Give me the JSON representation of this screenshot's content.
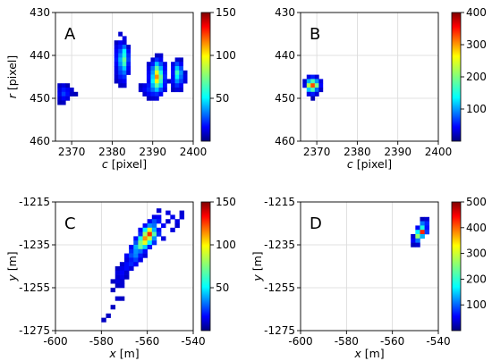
{
  "chart_data": [
    {
      "type": "heatmap",
      "panel_label": "A",
      "xlabel_var": "c",
      "xlabel_unit": "[pixel]",
      "ylabel_var": "r",
      "ylabel_unit": "[pixel]",
      "xlim": [
        2366,
        2400
      ],
      "ylim": [
        460,
        430
      ],
      "xticks": [
        2370,
        2380,
        2390,
        2400
      ],
      "yticks": [
        430,
        440,
        450,
        460
      ],
      "cell_size": 1,
      "colorbar": {
        "colormap": "jet",
        "min": 0,
        "max": 150,
        "ticks": [
          50,
          100,
          150
        ]
      },
      "cells": [
        [
          2367,
          447,
          10
        ],
        [
          2368,
          447,
          14
        ],
        [
          2369,
          447,
          8
        ],
        [
          2367,
          448,
          14
        ],
        [
          2368,
          448,
          22
        ],
        [
          2369,
          448,
          18
        ],
        [
          2370,
          448,
          12
        ],
        [
          2367,
          449,
          16
        ],
        [
          2368,
          449,
          28
        ],
        [
          2369,
          449,
          20
        ],
        [
          2370,
          449,
          10
        ],
        [
          2371,
          449,
          8
        ],
        [
          2367,
          450,
          12
        ],
        [
          2368,
          450,
          18
        ],
        [
          2369,
          450,
          14
        ],
        [
          2367,
          451,
          8
        ],
        [
          2368,
          451,
          10
        ],
        [
          2382,
          435,
          12
        ],
        [
          2383,
          436,
          15
        ],
        [
          2381,
          437,
          10
        ],
        [
          2382,
          437,
          18
        ],
        [
          2383,
          437,
          14
        ],
        [
          2381,
          438,
          15
        ],
        [
          2382,
          438,
          22
        ],
        [
          2383,
          438,
          35
        ],
        [
          2384,
          438,
          12
        ],
        [
          2381,
          439,
          18
        ],
        [
          2382,
          439,
          30
        ],
        [
          2383,
          439,
          55
        ],
        [
          2384,
          439,
          20
        ],
        [
          2381,
          440,
          20
        ],
        [
          2382,
          440,
          38
        ],
        [
          2383,
          440,
          60
        ],
        [
          2384,
          440,
          25
        ],
        [
          2381,
          441,
          22
        ],
        [
          2382,
          441,
          45
        ],
        [
          2383,
          441,
          72
        ],
        [
          2384,
          441,
          28
        ],
        [
          2381,
          442,
          18
        ],
        [
          2382,
          442,
          40
        ],
        [
          2383,
          442,
          65
        ],
        [
          2384,
          442,
          22
        ],
        [
          2381,
          443,
          15
        ],
        [
          2382,
          443,
          32
        ],
        [
          2383,
          443,
          48
        ],
        [
          2384,
          443,
          18
        ],
        [
          2381,
          444,
          14
        ],
        [
          2382,
          444,
          28
        ],
        [
          2383,
          444,
          36
        ],
        [
          2384,
          444,
          15
        ],
        [
          2381,
          445,
          12
        ],
        [
          2382,
          445,
          22
        ],
        [
          2383,
          445,
          26
        ],
        [
          2381,
          446,
          10
        ],
        [
          2382,
          446,
          15
        ],
        [
          2383,
          446,
          18
        ],
        [
          2382,
          447,
          10
        ],
        [
          2383,
          447,
          12
        ],
        [
          2391,
          440,
          10
        ],
        [
          2392,
          440,
          12
        ],
        [
          2390,
          441,
          12
        ],
        [
          2391,
          441,
          25
        ],
        [
          2392,
          441,
          18
        ],
        [
          2389,
          442,
          12
        ],
        [
          2390,
          442,
          22
        ],
        [
          2391,
          442,
          48
        ],
        [
          2392,
          442,
          30
        ],
        [
          2393,
          442,
          15
        ],
        [
          2389,
          443,
          15
        ],
        [
          2390,
          443,
          35
        ],
        [
          2391,
          443,
          70
        ],
        [
          2392,
          443,
          45
        ],
        [
          2393,
          443,
          18
        ],
        [
          2389,
          444,
          18
        ],
        [
          2390,
          444,
          42
        ],
        [
          2391,
          444,
          90
        ],
        [
          2392,
          444,
          60
        ],
        [
          2393,
          444,
          22
        ],
        [
          2389,
          445,
          20
        ],
        [
          2390,
          445,
          50
        ],
        [
          2391,
          445,
          110
        ],
        [
          2392,
          445,
          72
        ],
        [
          2393,
          445,
          25
        ],
        [
          2389,
          446,
          18
        ],
        [
          2390,
          446,
          55
        ],
        [
          2391,
          446,
          95
        ],
        [
          2392,
          446,
          65
        ],
        [
          2393,
          446,
          22
        ],
        [
          2387,
          447,
          10
        ],
        [
          2388,
          447,
          15
        ],
        [
          2389,
          447,
          22
        ],
        [
          2390,
          447,
          45
        ],
        [
          2391,
          447,
          70
        ],
        [
          2392,
          447,
          50
        ],
        [
          2393,
          447,
          20
        ],
        [
          2387,
          448,
          12
        ],
        [
          2388,
          448,
          18
        ],
        [
          2389,
          448,
          25
        ],
        [
          2390,
          448,
          35
        ],
        [
          2391,
          448,
          48
        ],
        [
          2392,
          448,
          30
        ],
        [
          2393,
          448,
          15
        ],
        [
          2388,
          449,
          12
        ],
        [
          2389,
          449,
          18
        ],
        [
          2390,
          449,
          22
        ],
        [
          2391,
          449,
          25
        ],
        [
          2392,
          449,
          18
        ],
        [
          2389,
          450,
          10
        ],
        [
          2390,
          450,
          12
        ],
        [
          2391,
          450,
          14
        ],
        [
          2396,
          441,
          12
        ],
        [
          2397,
          441,
          10
        ],
        [
          2395,
          442,
          15
        ],
        [
          2396,
          442,
          30
        ],
        [
          2397,
          442,
          18
        ],
        [
          2395,
          443,
          18
        ],
        [
          2396,
          443,
          48
        ],
        [
          2397,
          443,
          30
        ],
        [
          2395,
          444,
          20
        ],
        [
          2396,
          444,
          65
        ],
        [
          2397,
          444,
          40
        ],
        [
          2398,
          444,
          12
        ],
        [
          2395,
          445,
          18
        ],
        [
          2396,
          445,
          55
        ],
        [
          2397,
          445,
          35
        ],
        [
          2398,
          445,
          15
        ],
        [
          2394,
          446,
          12
        ],
        [
          2395,
          446,
          20
        ],
        [
          2396,
          446,
          40
        ],
        [
          2397,
          446,
          28
        ],
        [
          2398,
          446,
          14
        ],
        [
          2395,
          447,
          14
        ],
        [
          2396,
          447,
          25
        ],
        [
          2397,
          447,
          18
        ],
        [
          2395,
          448,
          10
        ],
        [
          2396,
          448,
          14
        ],
        [
          2397,
          448,
          12
        ]
      ]
    },
    {
      "type": "heatmap",
      "panel_label": "B",
      "xlabel_var": "c",
      "xlabel_unit": "[pixel]",
      "ylabel_var": "",
      "ylabel_unit": "",
      "xlim": [
        2366,
        2400
      ],
      "ylim": [
        460,
        430
      ],
      "xticks": [
        2370,
        2380,
        2390,
        2400
      ],
      "yticks": [
        430,
        440,
        450,
        460
      ],
      "cell_size": 1,
      "colorbar": {
        "colormap": "jet",
        "min": 0,
        "max": 400,
        "ticks": [
          100,
          200,
          300,
          400
        ]
      },
      "cells": [
        [
          2368,
          445,
          40
        ],
        [
          2369,
          445,
          60
        ],
        [
          2370,
          445,
          35
        ],
        [
          2367,
          446,
          30
        ],
        [
          2368,
          446,
          120
        ],
        [
          2369,
          446,
          180
        ],
        [
          2370,
          446,
          110
        ],
        [
          2371,
          446,
          40
        ],
        [
          2367,
          447,
          40
        ],
        [
          2368,
          447,
          220
        ],
        [
          2369,
          447,
          320
        ],
        [
          2370,
          447,
          200
        ],
        [
          2371,
          447,
          50
        ],
        [
          2368,
          448,
          130
        ],
        [
          2369,
          448,
          180
        ],
        [
          2370,
          448,
          90
        ],
        [
          2371,
          448,
          30
        ],
        [
          2368,
          449,
          40
        ],
        [
          2369,
          449,
          60
        ],
        [
          2370,
          449,
          35
        ],
        [
          2369,
          450,
          20
        ]
      ]
    },
    {
      "type": "heatmap",
      "panel_label": "C",
      "xlabel_var": "x",
      "xlabel_unit": "[m]",
      "ylabel_var": "y",
      "ylabel_unit": "[m]",
      "xlim": [
        -600,
        -540
      ],
      "ylim": [
        -1275,
        -1215
      ],
      "xticks": [
        -600,
        -580,
        -560,
        -540
      ],
      "yticks": [
        -1215,
        -1235,
        -1255,
        -1275
      ],
      "cell_size": 2,
      "colorbar": {
        "colormap": "jet",
        "min": 0,
        "max": 150,
        "ticks": [
          50,
          100,
          150
        ]
      },
      "cells": [
        [
          -555,
          -1219,
          12
        ],
        [
          -551,
          -1220,
          14
        ],
        [
          -545,
          -1220,
          12
        ],
        [
          -557,
          -1222,
          15
        ],
        [
          -555,
          -1222,
          18
        ],
        [
          -549,
          -1222,
          16
        ],
        [
          -545,
          -1222,
          14
        ],
        [
          -559,
          -1224,
          18
        ],
        [
          -557,
          -1224,
          30
        ],
        [
          -555,
          -1224,
          22
        ],
        [
          -551,
          -1224,
          12
        ],
        [
          -547,
          -1224,
          15
        ],
        [
          -561,
          -1226,
          20
        ],
        [
          -559,
          -1226,
          40
        ],
        [
          -557,
          -1226,
          35
        ],
        [
          -553,
          -1226,
          18
        ],
        [
          -547,
          -1226,
          12
        ],
        [
          -563,
          -1228,
          18
        ],
        [
          -561,
          -1228,
          55
        ],
        [
          -559,
          -1228,
          90
        ],
        [
          -557,
          -1228,
          45
        ],
        [
          -555,
          -1228,
          20
        ],
        [
          -549,
          -1228,
          14
        ],
        [
          -563,
          -1230,
          25
        ],
        [
          -561,
          -1230,
          80
        ],
        [
          -559,
          -1230,
          125
        ],
        [
          -557,
          -1230,
          70
        ],
        [
          -555,
          -1230,
          25
        ],
        [
          -565,
          -1232,
          20
        ],
        [
          -563,
          -1232,
          60
        ],
        [
          -561,
          -1232,
          110
        ],
        [
          -559,
          -1232,
          85
        ],
        [
          -557,
          -1232,
          40
        ],
        [
          -553,
          -1232,
          14
        ],
        [
          -565,
          -1234,
          30
        ],
        [
          -563,
          -1234,
          75
        ],
        [
          -561,
          -1234,
          90
        ],
        [
          -559,
          -1234,
          55
        ],
        [
          -557,
          -1234,
          25
        ],
        [
          -567,
          -1236,
          18
        ],
        [
          -565,
          -1236,
          45
        ],
        [
          -563,
          -1236,
          70
        ],
        [
          -561,
          -1236,
          50
        ],
        [
          -559,
          -1236,
          22
        ],
        [
          -567,
          -1238,
          25
        ],
        [
          -565,
          -1238,
          40
        ],
        [
          -563,
          -1238,
          35
        ],
        [
          -561,
          -1238,
          20
        ],
        [
          -569,
          -1240,
          18
        ],
        [
          -567,
          -1240,
          30
        ],
        [
          -565,
          -1240,
          38
        ],
        [
          -563,
          -1240,
          22
        ],
        [
          -561,
          -1240,
          14
        ],
        [
          -569,
          -1242,
          14
        ],
        [
          -567,
          -1242,
          22
        ],
        [
          -565,
          -1242,
          28
        ],
        [
          -563,
          -1242,
          16
        ],
        [
          -571,
          -1244,
          12
        ],
        [
          -569,
          -1244,
          20
        ],
        [
          -567,
          -1244,
          24
        ],
        [
          -565,
          -1244,
          18
        ],
        [
          -573,
          -1246,
          10
        ],
        [
          -571,
          -1246,
          16
        ],
        [
          -569,
          -1246,
          20
        ],
        [
          -567,
          -1246,
          14
        ],
        [
          -573,
          -1248,
          14
        ],
        [
          -571,
          -1248,
          18
        ],
        [
          -569,
          -1248,
          12
        ],
        [
          -573,
          -1250,
          12
        ],
        [
          -571,
          -1250,
          16
        ],
        [
          -569,
          -1250,
          10
        ],
        [
          -575,
          -1252,
          10
        ],
        [
          -573,
          -1252,
          14
        ],
        [
          -571,
          -1252,
          12
        ],
        [
          -573,
          -1254,
          10
        ],
        [
          -571,
          -1254,
          12
        ],
        [
          -575,
          -1256,
          10
        ],
        [
          -573,
          -1260,
          12
        ],
        [
          -571,
          -1260,
          10
        ],
        [
          -575,
          -1264,
          10
        ],
        [
          -577,
          -1268,
          10
        ],
        [
          -579,
          -1270,
          10
        ]
      ]
    },
    {
      "type": "heatmap",
      "panel_label": "D",
      "xlabel_var": "x",
      "xlabel_unit": "[m]",
      "ylabel_var": "y",
      "ylabel_unit": "[m]",
      "xlim": [
        -600,
        -540
      ],
      "ylim": [
        -1275,
        -1215
      ],
      "xticks": [
        -600,
        -580,
        -560,
        -540
      ],
      "yticks": [
        -1215,
        -1235,
        -1255,
        -1275
      ],
      "cell_size": 2,
      "colorbar": {
        "colormap": "jet",
        "min": 0,
        "max": 500,
        "ticks": [
          100,
          200,
          300,
          400,
          500
        ]
      },
      "cells": [
        [
          -547,
          -1223,
          30
        ],
        [
          -545,
          -1223,
          40
        ],
        [
          -547,
          -1225,
          120
        ],
        [
          -545,
          -1225,
          80
        ],
        [
          -549,
          -1227,
          60
        ],
        [
          -547,
          -1227,
          200
        ],
        [
          -545,
          -1227,
          70
        ],
        [
          -549,
          -1229,
          180
        ],
        [
          -547,
          -1229,
          420
        ],
        [
          -545,
          -1229,
          90
        ],
        [
          -551,
          -1231,
          40
        ],
        [
          -549,
          -1231,
          260
        ],
        [
          -547,
          -1231,
          150
        ],
        [
          -551,
          -1233,
          60
        ],
        [
          -549,
          -1233,
          120
        ],
        [
          -551,
          -1235,
          30
        ],
        [
          -549,
          -1235,
          40
        ]
      ]
    }
  ]
}
